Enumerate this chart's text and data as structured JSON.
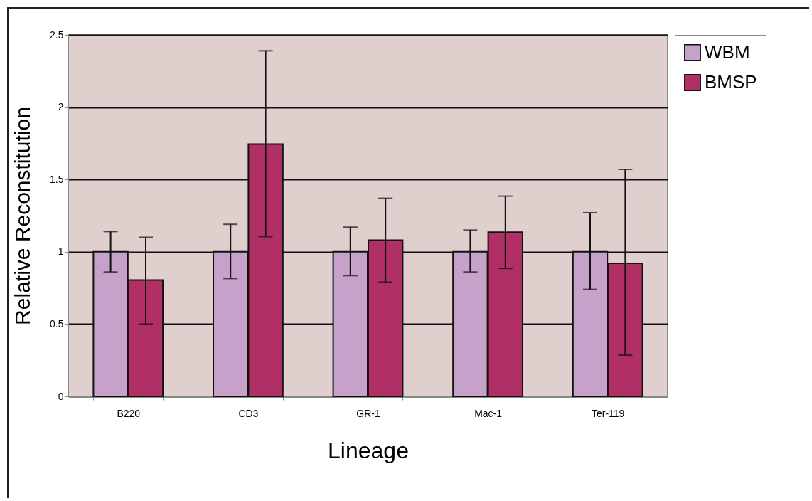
{
  "chart_data": {
    "type": "bar",
    "xlabel": "Lineage",
    "ylabel": "Relative Reconstitution",
    "categories": [
      "B220",
      "CD3",
      "GR-1",
      "Mac-1",
      "Ter-119"
    ],
    "series": [
      {
        "name": "WBM",
        "color": "#c6a2cb",
        "values": [
          1,
          1,
          1,
          1,
          1
        ],
        "errors": [
          [
            0.86,
            1.14
          ],
          [
            0.815,
            1.19
          ],
          [
            0.835,
            1.17
          ],
          [
            0.86,
            1.15
          ],
          [
            0.74,
            1.27
          ]
        ]
      },
      {
        "name": "BMSP",
        "color": "#b03065",
        "values": [
          0.805,
          1.745,
          1.08,
          1.135,
          0.92
        ],
        "errors": [
          [
            0.5,
            1.1
          ],
          [
            1.105,
            2.39
          ],
          [
            0.79,
            1.37
          ],
          [
            0.885,
            1.385
          ],
          [
            0.285,
            1.57
          ]
        ]
      }
    ],
    "ylim": [
      0,
      2.5
    ],
    "yticks": [
      0,
      0.5,
      1,
      1.5,
      2,
      2.5
    ],
    "grid": "y",
    "legend": "right"
  }
}
